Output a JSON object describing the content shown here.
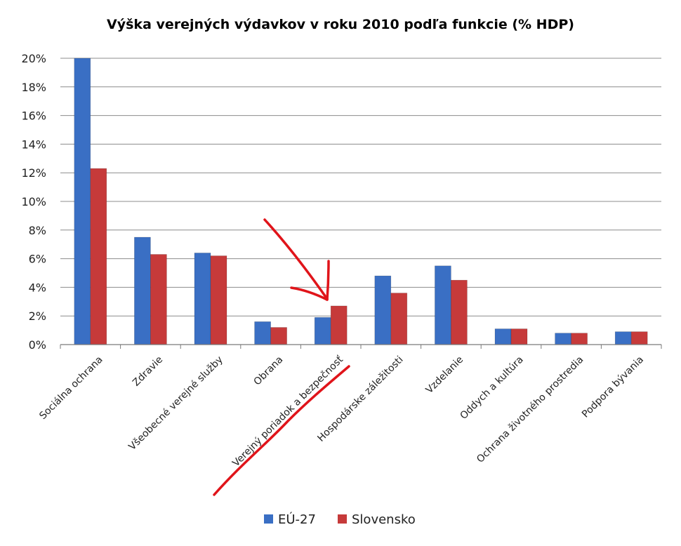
{
  "chart_data": {
    "type": "bar",
    "title": "Výška verejných výdavkov v roku 2010 podľa funkcie (% HDP)",
    "categories": [
      "Sociálna ochrana",
      "Zdravie",
      "Všeobecné verejné služby",
      "Obrana",
      "Verejný poriadok a bezpečnosť",
      "Hospodárske záležitosti",
      "Vzdelanie",
      "Oddych a kultúra",
      "Ochrana životného prostredia",
      "Podpora bývania"
    ],
    "series": [
      {
        "name": "EÚ-27",
        "color": "#3A6FC4",
        "values": [
          20.0,
          7.5,
          6.4,
          1.6,
          1.9,
          4.8,
          5.5,
          1.1,
          0.8,
          0.9
        ]
      },
      {
        "name": "Slovensko",
        "color": "#C63A3A",
        "values": [
          12.3,
          6.3,
          6.2,
          1.2,
          2.7,
          3.6,
          4.5,
          1.1,
          0.8,
          0.9
        ]
      }
    ],
    "yticks": [
      "0%",
      "2%",
      "4%",
      "6%",
      "8%",
      "10%",
      "12%",
      "14%",
      "16%",
      "18%",
      "20%"
    ],
    "ylim": [
      0,
      20
    ],
    "grid": true,
    "legend_position": "bottom",
    "annotations": [
      "red hand-drawn arrow pointing at Verejný poriadok a bezpečnosť",
      "red hand-drawn underline under Verejný poriadok a bezpečnosť"
    ],
    "annotation_color": "#E0141A"
  }
}
